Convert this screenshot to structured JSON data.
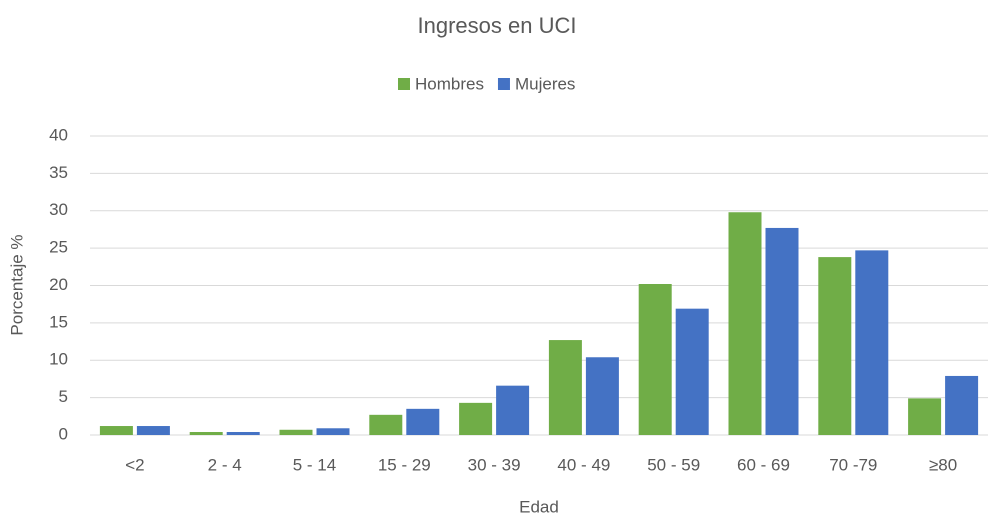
{
  "chart_data": {
    "type": "bar",
    "title": "Ingresos en UCI",
    "x_label": "Edad",
    "y_label": "Porcentaje %",
    "categories": [
      "<2",
      "2 - 4",
      "5 - 14",
      "15 - 29",
      "30 - 39",
      "40 - 49",
      "50 - 59",
      "60 - 69",
      "70 -79",
      "≥80"
    ],
    "series": [
      {
        "name": "Hombres",
        "color": "#70ad47",
        "values": [
          1.2,
          0.4,
          0.7,
          2.7,
          4.3,
          12.7,
          20.2,
          29.8,
          23.8,
          4.9
        ]
      },
      {
        "name": "Mujeres",
        "color": "#4472c4",
        "values": [
          1.2,
          0.4,
          0.9,
          3.5,
          6.6,
          10.4,
          16.9,
          27.7,
          24.7,
          7.9
        ]
      }
    ],
    "ylim": [
      0,
      40
    ],
    "yticks": [
      0,
      5,
      10,
      15,
      20,
      25,
      30,
      35,
      40
    ],
    "grid": true,
    "legend": "top"
  }
}
